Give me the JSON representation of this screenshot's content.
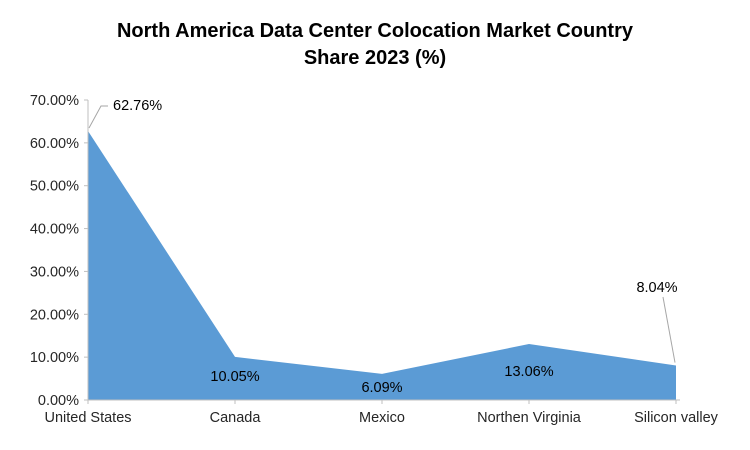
{
  "chart_data": {
    "type": "area",
    "title": "North America Data Center Colocation Market Country Share 2023 (%)",
    "title_line1": "North America Data Center Colocation Market Country",
    "title_line2": "Share 2023 (%)",
    "categories": [
      "United States",
      "Canada",
      "Mexico",
      "Northen Virginia",
      "Silicon valley"
    ],
    "values": [
      62.76,
      10.05,
      6.09,
      13.06,
      8.04
    ],
    "data_labels": [
      "62.76%",
      "10.05%",
      "6.09%",
      "13.06%",
      "8.04%"
    ],
    "ylim": [
      0,
      70
    ],
    "ytick_step": 10,
    "ytick_labels": [
      "0.00%",
      "10.00%",
      "20.00%",
      "30.00%",
      "40.00%",
      "50.00%",
      "60.00%",
      "70.00%"
    ],
    "xlabel": "",
    "ylabel": "",
    "grid": false,
    "legend": "none",
    "area_color": "#5B9BD5",
    "axis_color": "#BFBFBF",
    "leader_line_color": "#A6A6A6",
    "text_color": "#262626"
  }
}
